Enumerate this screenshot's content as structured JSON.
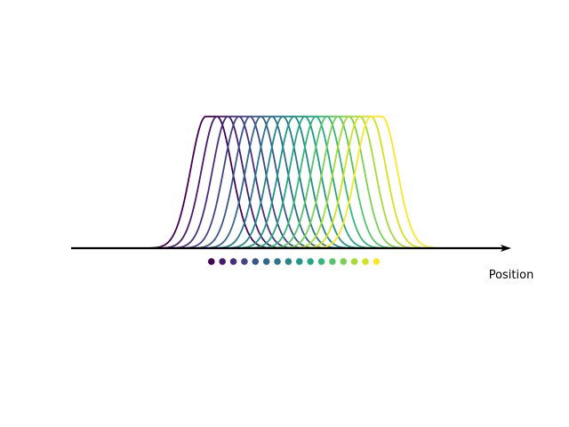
{
  "chart_data": {
    "type": "line",
    "title": "",
    "xlabel": "Position",
    "ylabel": "",
    "grid": false,
    "legend": "none",
    "curve_shape": "bell",
    "curve_height": 1.0,
    "curve_width": 0.55,
    "xlim": [
      0,
      16
    ],
    "ylim": [
      0,
      1.3
    ],
    "centers": [
      5.1,
      5.5,
      5.9,
      6.3,
      6.7,
      7.1,
      7.5,
      7.9,
      8.3,
      8.7,
      9.1,
      9.5,
      9.9,
      10.3,
      10.7,
      11.1
    ],
    "colors": [
      "#440154",
      "#481a6c",
      "#472f7d",
      "#414487",
      "#39568c",
      "#31688e",
      "#2a788e",
      "#23888e",
      "#1f988b",
      "#22a884",
      "#35b779",
      "#54c568",
      "#7ad151",
      "#a5db36",
      "#d2e21b",
      "#fde725"
    ]
  }
}
